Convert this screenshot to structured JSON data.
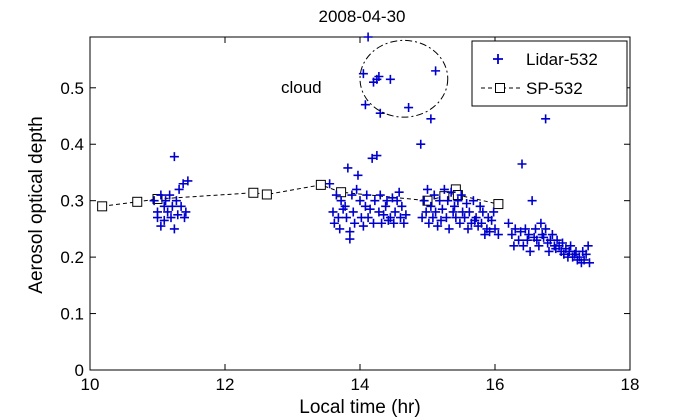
{
  "chart_data": {
    "type": "scatter",
    "title": "2008-04-30",
    "xlabel": "Local time (hr)",
    "ylabel": "Aerosol optical depth",
    "xlim": [
      10,
      18
    ],
    "ylim": [
      0,
      0.59
    ],
    "xticks": [
      10,
      12,
      14,
      16,
      18
    ],
    "yticks": [
      0,
      0.1,
      0.2,
      0.3,
      0.4,
      0.5
    ],
    "legend_position": "top-right",
    "annotation": {
      "text": "cloud",
      "ellipse_center": [
        14.65,
        0.516
      ],
      "ellipse_radii": [
        0.65,
        0.068
      ]
    },
    "series": [
      {
        "name": "Lidar-532",
        "marker": "plus",
        "color": "#0000cc",
        "points": [
          [
            10.95,
            0.3
          ],
          [
            11.0,
            0.28
          ],
          [
            11.0,
            0.27
          ],
          [
            11.05,
            0.31
          ],
          [
            11.05,
            0.255
          ],
          [
            11.1,
            0.29
          ],
          [
            11.1,
            0.265
          ],
          [
            11.12,
            0.3
          ],
          [
            11.15,
            0.28
          ],
          [
            11.18,
            0.31
          ],
          [
            11.2,
            0.27
          ],
          [
            11.22,
            0.29
          ],
          [
            11.25,
            0.25
          ],
          [
            11.25,
            0.378
          ],
          [
            11.28,
            0.3
          ],
          [
            11.3,
            0.275
          ],
          [
            11.32,
            0.32
          ],
          [
            11.35,
            0.29
          ],
          [
            11.38,
            0.33
          ],
          [
            11.4,
            0.27
          ],
          [
            11.42,
            0.28
          ],
          [
            11.45,
            0.335
          ],
          [
            13.55,
            0.33
          ],
          [
            13.6,
            0.28
          ],
          [
            13.62,
            0.26
          ],
          [
            13.65,
            0.31
          ],
          [
            13.68,
            0.27
          ],
          [
            13.7,
            0.25
          ],
          [
            13.72,
            0.3
          ],
          [
            13.75,
            0.285
          ],
          [
            13.78,
            0.29
          ],
          [
            13.8,
            0.27
          ],
          [
            13.82,
            0.358
          ],
          [
            13.85,
            0.245
          ],
          [
            13.85,
            0.232
          ],
          [
            13.88,
            0.31
          ],
          [
            13.9,
            0.28
          ],
          [
            13.92,
            0.26
          ],
          [
            13.95,
            0.32
          ],
          [
            13.97,
            0.345
          ],
          [
            14.0,
            0.3
          ],
          [
            14.02,
            0.27
          ],
          [
            14.05,
            0.255
          ],
          [
            14.08,
            0.29
          ],
          [
            14.1,
            0.31
          ],
          [
            14.12,
            0.27
          ],
          [
            14.15,
            0.285
          ],
          [
            14.18,
            0.375
          ],
          [
            14.2,
            0.26
          ],
          [
            14.22,
            0.3
          ],
          [
            14.25,
            0.38
          ],
          [
            14.28,
            0.28
          ],
          [
            14.3,
            0.31
          ],
          [
            14.32,
            0.26
          ],
          [
            14.35,
            0.275
          ],
          [
            14.38,
            0.29
          ],
          [
            14.4,
            0.3
          ],
          [
            14.42,
            0.265
          ],
          [
            14.45,
            0.27
          ],
          [
            14.48,
            0.305
          ],
          [
            14.5,
            0.26
          ],
          [
            14.52,
            0.28
          ],
          [
            14.55,
            0.3
          ],
          [
            14.58,
            0.315
          ],
          [
            14.6,
            0.27
          ],
          [
            14.62,
            0.29
          ],
          [
            14.65,
            0.26
          ],
          [
            14.68,
            0.275
          ],
          [
            14.92,
            0.27
          ],
          [
            14.95,
            0.3
          ],
          [
            14.98,
            0.28
          ],
          [
            15.0,
            0.32
          ],
          [
            15.02,
            0.26
          ],
          [
            15.05,
            0.29
          ],
          [
            15.08,
            0.27
          ],
          [
            15.1,
            0.31
          ],
          [
            15.12,
            0.28
          ],
          [
            15.15,
            0.255
          ],
          [
            15.18,
            0.3
          ],
          [
            15.2,
            0.265
          ],
          [
            15.22,
            0.285
          ],
          [
            15.25,
            0.32
          ],
          [
            15.28,
            0.27
          ],
          [
            15.3,
            0.3
          ],
          [
            15.32,
            0.25
          ],
          [
            15.35,
            0.315
          ],
          [
            15.38,
            0.28
          ],
          [
            15.4,
            0.29
          ],
          [
            15.42,
            0.27
          ],
          [
            15.45,
            0.3
          ],
          [
            15.48,
            0.26
          ],
          [
            15.5,
            0.31
          ],
          [
            15.52,
            0.28
          ],
          [
            15.55,
            0.27
          ],
          [
            15.58,
            0.295
          ],
          [
            15.6,
            0.25
          ],
          [
            15.62,
            0.28
          ],
          [
            15.65,
            0.26
          ],
          [
            15.68,
            0.3
          ],
          [
            15.7,
            0.265
          ],
          [
            15.72,
            0.27
          ],
          [
            15.75,
            0.255
          ],
          [
            15.78,
            0.29
          ],
          [
            15.8,
            0.26
          ],
          [
            15.82,
            0.28
          ],
          [
            15.85,
            0.24
          ],
          [
            15.88,
            0.25
          ],
          [
            15.9,
            0.27
          ],
          [
            15.92,
            0.245
          ],
          [
            15.95,
            0.265
          ],
          [
            15.98,
            0.28
          ],
          [
            16.0,
            0.25
          ],
          [
            16.05,
            0.24
          ],
          [
            16.2,
            0.26
          ],
          [
            16.25,
            0.24
          ],
          [
            16.28,
            0.22
          ],
          [
            16.3,
            0.25
          ],
          [
            16.35,
            0.23
          ],
          [
            16.38,
            0.245
          ],
          [
            16.4,
            0.365
          ],
          [
            16.42,
            0.22
          ],
          [
            16.45,
            0.25
          ],
          [
            16.48,
            0.23
          ],
          [
            16.5,
            0.24
          ],
          [
            16.52,
            0.21
          ],
          [
            16.55,
            0.3
          ],
          [
            16.58,
            0.235
          ],
          [
            16.6,
            0.25
          ],
          [
            16.62,
            0.23
          ],
          [
            16.65,
            0.22
          ],
          [
            16.68,
            0.26
          ],
          [
            16.7,
            0.24
          ],
          [
            16.72,
            0.235
          ],
          [
            16.75,
            0.25
          ],
          [
            16.78,
            0.225
          ],
          [
            16.8,
            0.21
          ],
          [
            16.82,
            0.23
          ],
          [
            16.85,
            0.24
          ],
          [
            16.88,
            0.22
          ],
          [
            16.9,
            0.215
          ],
          [
            16.92,
            0.23
          ],
          [
            16.95,
            0.22
          ],
          [
            16.98,
            0.21
          ],
          [
            17.0,
            0.225
          ],
          [
            17.02,
            0.205
          ],
          [
            17.05,
            0.215
          ],
          [
            17.08,
            0.2
          ],
          [
            17.1,
            0.21
          ],
          [
            17.12,
            0.22
          ],
          [
            17.15,
            0.2
          ],
          [
            17.18,
            0.205
          ],
          [
            17.2,
            0.21
          ],
          [
            17.22,
            0.195
          ],
          [
            17.25,
            0.2
          ],
          [
            17.28,
            0.19
          ],
          [
            17.3,
            0.21
          ],
          [
            17.32,
            0.195
          ],
          [
            17.35,
            0.205
          ],
          [
            17.38,
            0.22
          ],
          [
            17.4,
            0.19
          ],
          [
            14.12,
            0.59
          ],
          [
            14.25,
            0.515
          ],
          [
            14.2,
            0.51
          ],
          [
            14.28,
            0.52
          ],
          [
            14.05,
            0.525
          ],
          [
            14.08,
            0.47
          ],
          [
            14.3,
            0.455
          ],
          [
            14.45,
            0.515
          ],
          [
            14.72,
            0.465
          ],
          [
            14.9,
            0.4
          ],
          [
            15.05,
            0.445
          ],
          [
            15.12,
            0.53
          ],
          [
            16.75,
            0.445
          ]
        ]
      },
      {
        "name": "SP-532",
        "marker": "square",
        "color": "#000000",
        "line": "dashed",
        "points": [
          [
            10.18,
            0.29
          ],
          [
            10.7,
            0.298
          ],
          [
            11.0,
            0.303
          ],
          [
            12.42,
            0.314
          ],
          [
            12.62,
            0.311
          ],
          [
            13.42,
            0.328
          ],
          [
            13.72,
            0.315
          ],
          [
            15.0,
            0.3
          ],
          [
            15.25,
            0.308
          ],
          [
            15.42,
            0.32
          ],
          [
            15.45,
            0.31
          ],
          [
            16.05,
            0.294
          ]
        ]
      }
    ]
  }
}
